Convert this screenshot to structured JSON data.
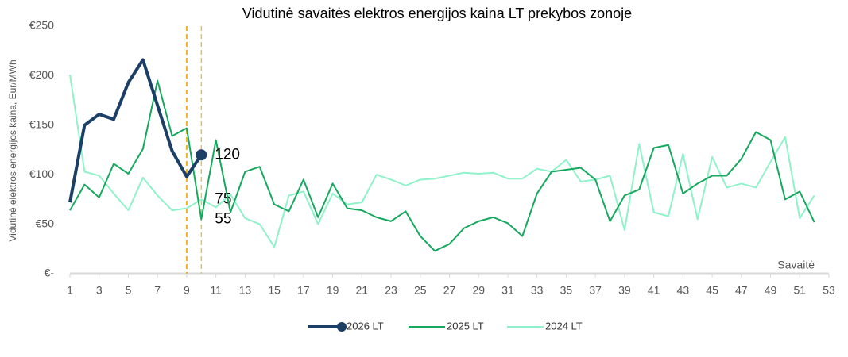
{
  "chart_data": {
    "type": "line",
    "title": "Vidutinė savaitės elektros energijos kaina LT prekybos zonoje",
    "y_label": "Vidutinė elektros energijos kaina, Eur/MWh",
    "x_label": "Savaitė",
    "x": [
      1,
      2,
      3,
      4,
      5,
      6,
      7,
      8,
      9,
      10,
      11,
      12,
      13,
      14,
      15,
      16,
      17,
      18,
      19,
      20,
      21,
      22,
      23,
      24,
      25,
      26,
      27,
      28,
      29,
      30,
      31,
      32,
      33,
      34,
      35,
      36,
      37,
      38,
      39,
      40,
      41,
      42,
      43,
      44,
      45,
      46,
      47,
      48,
      49,
      50,
      51,
      52
    ],
    "xlim": [
      1,
      53
    ],
    "xticks": [
      1,
      3,
      5,
      7,
      9,
      11,
      13,
      15,
      17,
      19,
      21,
      23,
      25,
      27,
      29,
      31,
      33,
      35,
      37,
      39,
      41,
      43,
      45,
      47,
      49,
      51,
      53
    ],
    "ylim": [
      0,
      250
    ],
    "yticks": [
      {
        "value": 0,
        "label": "€-"
      },
      {
        "value": 50,
        "label": "€50"
      },
      {
        "value": 100,
        "label": "€100"
      },
      {
        "value": 150,
        "label": "€150"
      },
      {
        "value": 200,
        "label": "€200"
      },
      {
        "value": 250,
        "label": "€250"
      }
    ],
    "vlines": [
      9,
      10
    ],
    "vline_color": "#f0b323",
    "legend": "bottom",
    "label_at_x": 10,
    "series": [
      {
        "name": "2026 LT",
        "color": "#1b3f66",
        "width": 4,
        "end_marker": true,
        "values": [
          72,
          150,
          161,
          156,
          193,
          216,
          170,
          124,
          98,
          120,
          null,
          null,
          null,
          null,
          null,
          null,
          null,
          null,
          null,
          null,
          null,
          null,
          null,
          null,
          null,
          null,
          null,
          null,
          null,
          null,
          null,
          null,
          null,
          null,
          null,
          null,
          null,
          null,
          null,
          null,
          null,
          null,
          null,
          null,
          null,
          null,
          null,
          null,
          null,
          null,
          null,
          null
        ]
      },
      {
        "name": "2025 LT",
        "color": "#16a85e",
        "width": 2,
        "values": [
          64,
          90,
          77,
          111,
          101,
          126,
          195,
          139,
          147,
          55,
          135,
          62,
          103,
          108,
          70,
          63,
          95,
          57,
          91,
          66,
          64,
          57,
          53,
          63,
          38,
          23,
          30,
          46,
          53,
          57,
          51,
          38,
          81,
          103,
          105,
          107,
          95,
          53,
          79,
          85,
          127,
          130,
          81,
          91,
          99,
          99,
          116,
          143,
          135,
          75,
          83,
          52
        ]
      },
      {
        "name": "2024 LT",
        "color": "#8ff2c9",
        "width": 2,
        "values": [
          201,
          103,
          99,
          81,
          64,
          97,
          79,
          64,
          66,
          75,
          67,
          80,
          56,
          50,
          27,
          79,
          83,
          50,
          81,
          70,
          72,
          100,
          95,
          89,
          95,
          96,
          99,
          102,
          101,
          102,
          96,
          96,
          106,
          103,
          115,
          93,
          95,
          99,
          44,
          131,
          62,
          58,
          121,
          55,
          118,
          87,
          91,
          87,
          113,
          138,
          56,
          79
        ]
      }
    ]
  }
}
